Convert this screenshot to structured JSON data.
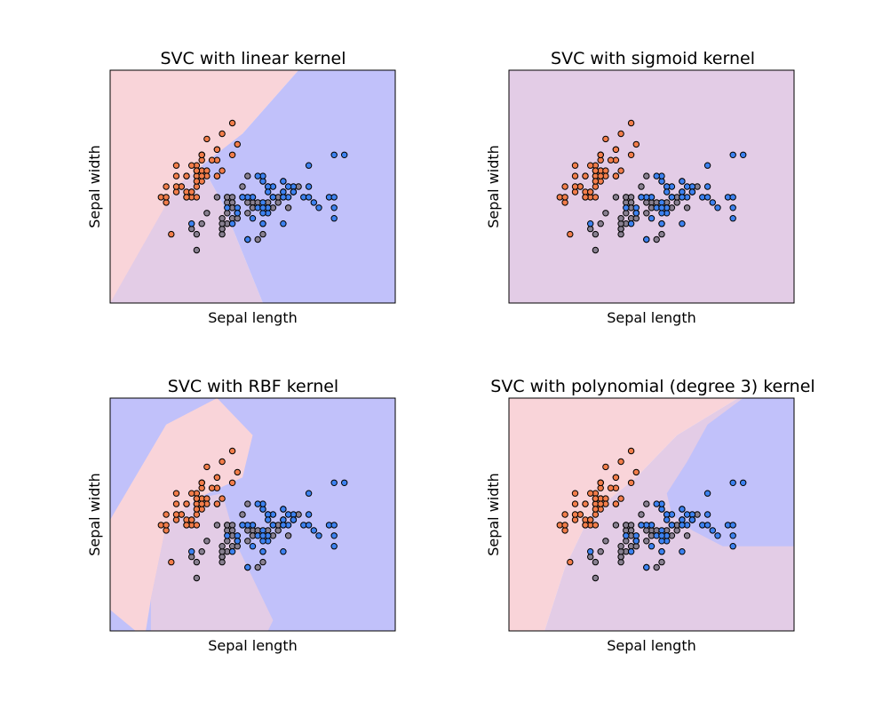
{
  "chart_data": [
    {
      "type": "scatter",
      "title": "SVC with linear kernel",
      "xlabel": "Sepal length",
      "ylabel": "Sepal width",
      "xlim": [
        3.3,
        8.9
      ],
      "ylim": [
        1.0,
        5.4
      ],
      "grid": false,
      "regions": [
        {
          "class": "setosa",
          "color": "#f9d4d9",
          "polygon": [
            [
              3.3,
              5.4
            ],
            [
              7.0,
              5.4
            ],
            [
              5.9,
              4.2
            ],
            [
              5.0,
              3.3
            ],
            [
              3.3,
              1.0
            ]
          ]
        },
        {
          "class": "versicolor",
          "color": "#e3cce6",
          "polygon": [
            [
              3.3,
              1.0
            ],
            [
              6.3,
              1.0
            ],
            [
              5.5,
              2.9
            ],
            [
              5.1,
              3.6
            ],
            [
              4.6,
              3.2
            ]
          ]
        },
        {
          "class": "virginica",
          "color": "#c1c1fa",
          "polygon": [
            [
              7.0,
              5.4
            ],
            [
              8.9,
              5.4
            ],
            [
              8.9,
              1.0
            ],
            [
              6.3,
              1.0
            ],
            [
              5.5,
              2.9
            ],
            [
              5.1,
              3.6
            ],
            [
              5.9,
              4.2
            ]
          ]
        }
      ]
    },
    {
      "type": "scatter",
      "title": "SVC with sigmoid kernel",
      "xlabel": "Sepal length",
      "ylabel": "Sepal width",
      "xlim": [
        3.3,
        8.9
      ],
      "ylim": [
        1.0,
        5.4
      ],
      "grid": false,
      "regions": [
        {
          "class": "versicolor",
          "color": "#e3cce6",
          "polygon": [
            [
              3.3,
              5.4
            ],
            [
              8.9,
              5.4
            ],
            [
              8.9,
              1.0
            ],
            [
              3.3,
              1.0
            ]
          ]
        }
      ]
    },
    {
      "type": "scatter",
      "title": "SVC with RBF kernel",
      "xlabel": "Sepal length",
      "ylabel": "Sepal width",
      "xlim": [
        3.3,
        8.9
      ],
      "ylim": [
        1.0,
        5.4
      ],
      "grid": false,
      "regions": [
        {
          "class": "virginica",
          "color": "#c1c1fa",
          "polygon": [
            [
              3.3,
              5.4
            ],
            [
              8.9,
              5.4
            ],
            [
              8.9,
              1.0
            ],
            [
              3.3,
              1.0
            ]
          ]
        },
        {
          "class": "setosa",
          "color": "#f9d4d9",
          "polygon": [
            [
              3.3,
              3.1
            ],
            [
              4.4,
              4.9
            ],
            [
              5.4,
              5.4
            ],
            [
              6.1,
              4.7
            ],
            [
              5.9,
              3.9
            ],
            [
              5.0,
              3.5
            ],
            [
              4.4,
              3.0
            ],
            [
              4.1,
              1.6
            ],
            [
              4.0,
              1.0
            ],
            [
              3.8,
              1.0
            ],
            [
              3.3,
              1.4
            ]
          ]
        },
        {
          "class": "versicolor",
          "color": "#e3cce6",
          "polygon": [
            [
              4.1,
              1.0
            ],
            [
              4.1,
              1.6
            ],
            [
              4.4,
              3.0
            ],
            [
              5.0,
              3.5
            ],
            [
              5.5,
              3.6
            ],
            [
              5.8,
              2.6
            ],
            [
              6.5,
              1.2
            ],
            [
              6.4,
              1.0
            ]
          ]
        }
      ]
    },
    {
      "type": "scatter",
      "title": "SVC with polynomial (degree 3) kernel",
      "xlabel": "Sepal length",
      "ylabel": "Sepal width",
      "xlim": [
        3.3,
        8.9
      ],
      "ylim": [
        1.0,
        5.4
      ],
      "grid": false,
      "regions": [
        {
          "class": "setosa",
          "color": "#f9d4d9",
          "polygon": [
            [
              3.3,
              5.4
            ],
            [
              7.8,
              5.4
            ],
            [
              6.6,
              4.7
            ],
            [
              5.8,
              3.9
            ],
            [
              4.9,
              3.2
            ],
            [
              4.4,
              2.2
            ],
            [
              4.0,
              1.0
            ],
            [
              3.3,
              1.0
            ]
          ]
        },
        {
          "class": "versicolor",
          "color": "#e3cce6",
          "polygon": [
            [
              4.0,
              1.0
            ],
            [
              4.4,
              2.2
            ],
            [
              4.9,
              3.2
            ],
            [
              5.8,
              3.9
            ],
            [
              6.6,
              4.7
            ],
            [
              7.8,
              5.4
            ],
            [
              8.9,
              5.4
            ],
            [
              8.9,
              1.0
            ]
          ]
        },
        {
          "class": "virginica",
          "color": "#c1c1fa",
          "polygon": [
            [
              7.9,
              5.4
            ],
            [
              7.2,
              4.9
            ],
            [
              6.8,
              4.2
            ],
            [
              6.4,
              3.6
            ],
            [
              6.5,
              3.2
            ],
            [
              6.9,
              2.9
            ],
            [
              7.5,
              2.6
            ],
            [
              8.9,
              2.6
            ],
            [
              8.9,
              5.4
            ]
          ]
        }
      ]
    }
  ],
  "points": [
    {
      "x": 5.1,
      "y": 3.5,
      "c": 0
    },
    {
      "x": 4.9,
      "y": 3.0,
      "c": 0
    },
    {
      "x": 4.7,
      "y": 3.2,
      "c": 0
    },
    {
      "x": 4.6,
      "y": 3.1,
      "c": 0
    },
    {
      "x": 5.0,
      "y": 3.6,
      "c": 0
    },
    {
      "x": 5.4,
      "y": 3.9,
      "c": 0
    },
    {
      "x": 4.6,
      "y": 3.4,
      "c": 0
    },
    {
      "x": 5.0,
      "y": 3.4,
      "c": 0
    },
    {
      "x": 4.4,
      "y": 2.9,
      "c": 0
    },
    {
      "x": 4.9,
      "y": 3.1,
      "c": 0
    },
    {
      "x": 5.4,
      "y": 3.7,
      "c": 0
    },
    {
      "x": 4.8,
      "y": 3.4,
      "c": 0
    },
    {
      "x": 4.8,
      "y": 3.0,
      "c": 0
    },
    {
      "x": 4.3,
      "y": 3.0,
      "c": 0
    },
    {
      "x": 5.8,
      "y": 4.0,
      "c": 0
    },
    {
      "x": 5.7,
      "y": 4.4,
      "c": 0
    },
    {
      "x": 5.4,
      "y": 3.9,
      "c": 0
    },
    {
      "x": 5.1,
      "y": 3.5,
      "c": 0
    },
    {
      "x": 5.7,
      "y": 3.8,
      "c": 0
    },
    {
      "x": 5.1,
      "y": 3.8,
      "c": 0
    },
    {
      "x": 5.4,
      "y": 3.4,
      "c": 0
    },
    {
      "x": 5.1,
      "y": 3.7,
      "c": 0
    },
    {
      "x": 4.6,
      "y": 3.6,
      "c": 0
    },
    {
      "x": 5.1,
      "y": 3.3,
      "c": 0
    },
    {
      "x": 4.8,
      "y": 3.4,
      "c": 0
    },
    {
      "x": 5.0,
      "y": 3.0,
      "c": 0
    },
    {
      "x": 5.0,
      "y": 3.4,
      "c": 0
    },
    {
      "x": 5.2,
      "y": 3.5,
      "c": 0
    },
    {
      "x": 5.2,
      "y": 3.4,
      "c": 0
    },
    {
      "x": 4.7,
      "y": 3.2,
      "c": 0
    },
    {
      "x": 4.8,
      "y": 3.1,
      "c": 0
    },
    {
      "x": 5.4,
      "y": 3.4,
      "c": 0
    },
    {
      "x": 5.2,
      "y": 4.1,
      "c": 0
    },
    {
      "x": 5.5,
      "y": 4.2,
      "c": 0
    },
    {
      "x": 4.9,
      "y": 3.1,
      "c": 0
    },
    {
      "x": 5.0,
      "y": 3.2,
      "c": 0
    },
    {
      "x": 5.5,
      "y": 3.5,
      "c": 0
    },
    {
      "x": 4.9,
      "y": 3.6,
      "c": 0
    },
    {
      "x": 4.4,
      "y": 3.0,
      "c": 0
    },
    {
      "x": 5.1,
      "y": 3.4,
      "c": 0
    },
    {
      "x": 5.0,
      "y": 3.5,
      "c": 0
    },
    {
      "x": 4.5,
      "y": 2.3,
      "c": 0
    },
    {
      "x": 4.4,
      "y": 3.2,
      "c": 0
    },
    {
      "x": 5.0,
      "y": 3.5,
      "c": 0
    },
    {
      "x": 5.1,
      "y": 3.8,
      "c": 0
    },
    {
      "x": 4.8,
      "y": 3.0,
      "c": 0
    },
    {
      "x": 5.1,
      "y": 3.8,
      "c": 0
    },
    {
      "x": 4.6,
      "y": 3.2,
      "c": 0
    },
    {
      "x": 5.3,
      "y": 3.7,
      "c": 0
    },
    {
      "x": 5.0,
      "y": 3.3,
      "c": 0
    },
    {
      "x": 7.0,
      "y": 3.2,
      "c": 1
    },
    {
      "x": 6.4,
      "y": 3.2,
      "c": 1
    },
    {
      "x": 6.9,
      "y": 3.1,
      "c": 1
    },
    {
      "x": 5.5,
      "y": 2.3,
      "c": 1
    },
    {
      "x": 6.5,
      "y": 2.8,
      "c": 1
    },
    {
      "x": 5.7,
      "y": 2.8,
      "c": 1
    },
    {
      "x": 6.3,
      "y": 3.3,
      "c": 1
    },
    {
      "x": 4.9,
      "y": 2.4,
      "c": 1
    },
    {
      "x": 6.6,
      "y": 2.9,
      "c": 1
    },
    {
      "x": 5.2,
      "y": 2.7,
      "c": 1
    },
    {
      "x": 5.0,
      "y": 2.0,
      "c": 1
    },
    {
      "x": 5.9,
      "y": 3.0,
      "c": 1
    },
    {
      "x": 6.0,
      "y": 2.2,
      "c": 1
    },
    {
      "x": 6.1,
      "y": 2.9,
      "c": 1
    },
    {
      "x": 5.6,
      "y": 2.9,
      "c": 1
    },
    {
      "x": 6.7,
      "y": 3.1,
      "c": 1
    },
    {
      "x": 5.6,
      "y": 3.0,
      "c": 1
    },
    {
      "x": 5.8,
      "y": 2.7,
      "c": 1
    },
    {
      "x": 6.2,
      "y": 2.2,
      "c": 1
    },
    {
      "x": 5.6,
      "y": 2.5,
      "c": 1
    },
    {
      "x": 5.9,
      "y": 3.2,
      "c": 1
    },
    {
      "x": 6.1,
      "y": 2.8,
      "c": 1
    },
    {
      "x": 6.3,
      "y": 2.5,
      "c": 1
    },
    {
      "x": 6.1,
      "y": 2.8,
      "c": 1
    },
    {
      "x": 6.4,
      "y": 2.9,
      "c": 1
    },
    {
      "x": 6.6,
      "y": 3.0,
      "c": 1
    },
    {
      "x": 6.8,
      "y": 2.8,
      "c": 1
    },
    {
      "x": 6.7,
      "y": 3.0,
      "c": 1
    },
    {
      "x": 6.0,
      "y": 2.9,
      "c": 1
    },
    {
      "x": 5.7,
      "y": 2.6,
      "c": 1
    },
    {
      "x": 5.5,
      "y": 2.4,
      "c": 1
    },
    {
      "x": 5.5,
      "y": 2.4,
      "c": 1
    },
    {
      "x": 5.8,
      "y": 2.7,
      "c": 1
    },
    {
      "x": 6.0,
      "y": 2.7,
      "c": 1
    },
    {
      "x": 5.4,
      "y": 3.0,
      "c": 1
    },
    {
      "x": 6.0,
      "y": 3.4,
      "c": 1
    },
    {
      "x": 6.7,
      "y": 3.1,
      "c": 1
    },
    {
      "x": 6.3,
      "y": 2.3,
      "c": 1
    },
    {
      "x": 5.6,
      "y": 3.0,
      "c": 1
    },
    {
      "x": 5.5,
      "y": 2.5,
      "c": 1
    },
    {
      "x": 5.5,
      "y": 2.6,
      "c": 1
    },
    {
      "x": 6.1,
      "y": 3.0,
      "c": 1
    },
    {
      "x": 5.8,
      "y": 2.6,
      "c": 1
    },
    {
      "x": 5.0,
      "y": 2.3,
      "c": 1
    },
    {
      "x": 5.6,
      "y": 2.7,
      "c": 1
    },
    {
      "x": 5.7,
      "y": 3.0,
      "c": 1
    },
    {
      "x": 5.7,
      "y": 2.9,
      "c": 1
    },
    {
      "x": 6.2,
      "y": 2.9,
      "c": 1
    },
    {
      "x": 5.1,
      "y": 2.5,
      "c": 1
    },
    {
      "x": 5.7,
      "y": 2.8,
      "c": 1
    },
    {
      "x": 6.3,
      "y": 3.3,
      "c": 2
    },
    {
      "x": 5.8,
      "y": 2.7,
      "c": 2
    },
    {
      "x": 7.1,
      "y": 3.0,
      "c": 2
    },
    {
      "x": 6.3,
      "y": 2.9,
      "c": 2
    },
    {
      "x": 6.5,
      "y": 3.0,
      "c": 2
    },
    {
      "x": 7.6,
      "y": 3.0,
      "c": 2
    },
    {
      "x": 4.9,
      "y": 2.5,
      "c": 2
    },
    {
      "x": 7.3,
      "y": 2.9,
      "c": 2
    },
    {
      "x": 6.7,
      "y": 2.5,
      "c": 2
    },
    {
      "x": 7.2,
      "y": 3.6,
      "c": 2
    },
    {
      "x": 6.5,
      "y": 3.2,
      "c": 2
    },
    {
      "x": 6.4,
      "y": 2.7,
      "c": 2
    },
    {
      "x": 6.8,
      "y": 3.0,
      "c": 2
    },
    {
      "x": 5.7,
      "y": 2.5,
      "c": 2
    },
    {
      "x": 5.8,
      "y": 2.8,
      "c": 2
    },
    {
      "x": 6.4,
      "y": 3.2,
      "c": 2
    },
    {
      "x": 6.5,
      "y": 3.0,
      "c": 2
    },
    {
      "x": 7.7,
      "y": 3.8,
      "c": 2
    },
    {
      "x": 7.7,
      "y": 2.6,
      "c": 2
    },
    {
      "x": 6.0,
      "y": 2.2,
      "c": 2
    },
    {
      "x": 6.9,
      "y": 3.2,
      "c": 2
    },
    {
      "x": 5.6,
      "y": 2.8,
      "c": 2
    },
    {
      "x": 7.7,
      "y": 2.8,
      "c": 2
    },
    {
      "x": 6.3,
      "y": 2.7,
      "c": 2
    },
    {
      "x": 6.7,
      "y": 3.3,
      "c": 2
    },
    {
      "x": 7.2,
      "y": 3.2,
      "c": 2
    },
    {
      "x": 6.2,
      "y": 2.8,
      "c": 2
    },
    {
      "x": 6.1,
      "y": 3.0,
      "c": 2
    },
    {
      "x": 6.4,
      "y": 2.8,
      "c": 2
    },
    {
      "x": 7.2,
      "y": 3.0,
      "c": 2
    },
    {
      "x": 7.4,
      "y": 2.8,
      "c": 2
    },
    {
      "x": 7.9,
      "y": 3.8,
      "c": 2
    },
    {
      "x": 6.4,
      "y": 2.8,
      "c": 2
    },
    {
      "x": 6.3,
      "y": 2.8,
      "c": 2
    },
    {
      "x": 6.1,
      "y": 2.6,
      "c": 2
    },
    {
      "x": 7.7,
      "y": 3.0,
      "c": 2
    },
    {
      "x": 6.3,
      "y": 3.4,
      "c": 2
    },
    {
      "x": 6.4,
      "y": 3.1,
      "c": 2
    },
    {
      "x": 6.0,
      "y": 3.0,
      "c": 2
    },
    {
      "x": 6.9,
      "y": 3.1,
      "c": 2
    },
    {
      "x": 6.7,
      "y": 3.1,
      "c": 2
    },
    {
      "x": 6.9,
      "y": 3.1,
      "c": 2
    },
    {
      "x": 5.8,
      "y": 2.7,
      "c": 2
    },
    {
      "x": 6.8,
      "y": 3.2,
      "c": 2
    },
    {
      "x": 6.7,
      "y": 3.3,
      "c": 2
    },
    {
      "x": 6.7,
      "y": 3.0,
      "c": 2
    },
    {
      "x": 6.3,
      "y": 2.5,
      "c": 2
    },
    {
      "x": 6.5,
      "y": 3.0,
      "c": 2
    },
    {
      "x": 6.2,
      "y": 3.4,
      "c": 2
    },
    {
      "x": 5.9,
      "y": 3.0,
      "c": 2
    }
  ],
  "point_colors": [
    "#f27d4a",
    "#888090",
    "#3d82f0"
  ],
  "point_edge_color": "#000000"
}
